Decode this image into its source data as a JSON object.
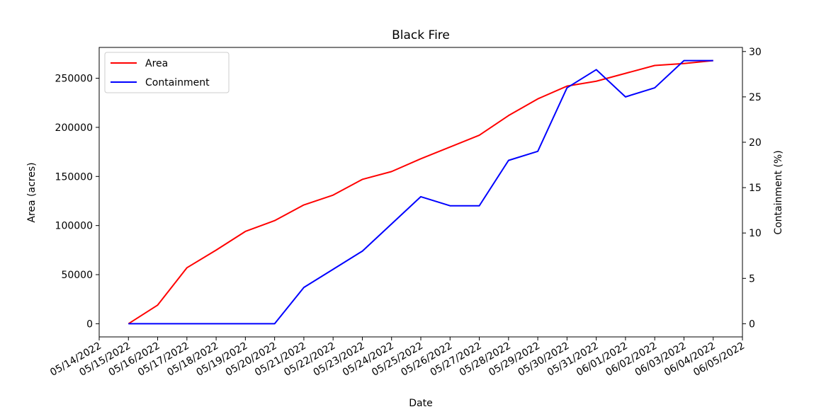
{
  "chart_data": {
    "type": "line",
    "title": "Black Fire",
    "xlabel": "Date",
    "ylabel": "Area (acres)",
    "y2label": "Containment (%)",
    "x": [
      "05/15/2022",
      "05/16/2022",
      "05/17/2022",
      "05/18/2022",
      "05/19/2022",
      "05/20/2022",
      "05/21/2022",
      "05/22/2022",
      "05/23/2022",
      "05/24/2022",
      "05/25/2022",
      "05/26/2022",
      "05/27/2022",
      "05/28/2022",
      "05/29/2022",
      "05/30/2022",
      "05/31/2022",
      "06/01/2022",
      "06/02/2022",
      "06/03/2022",
      "06/04/2022"
    ],
    "x_ticks": [
      "05/14/2022",
      "05/15/2022",
      "05/16/2022",
      "05/17/2022",
      "05/18/2022",
      "05/19/2022",
      "05/20/2022",
      "05/21/2022",
      "05/22/2022",
      "05/23/2022",
      "05/24/2022",
      "05/25/2022",
      "05/26/2022",
      "05/27/2022",
      "05/28/2022",
      "05/29/2022",
      "05/30/2022",
      "05/31/2022",
      "06/01/2022",
      "06/02/2022",
      "06/03/2022",
      "06/04/2022",
      "06/05/2022"
    ],
    "y_ticks": [
      0,
      50000,
      100000,
      150000,
      200000,
      250000
    ],
    "y_tick_labels": [
      "0",
      "50000",
      "100000",
      "150000",
      "200000",
      "250000"
    ],
    "ylim": [
      -13400,
      281400
    ],
    "y2_ticks": [
      0,
      5,
      10,
      15,
      20,
      25,
      30
    ],
    "y2_tick_labels": [
      "0",
      "5",
      "10",
      "15",
      "20",
      "25",
      "30"
    ],
    "y2lim": [
      -1.45,
      30.45
    ],
    "series": [
      {
        "name": "Area",
        "axis": "left",
        "color": "#ff0000",
        "values": [
          0,
          19000,
          57000,
          75000,
          94000,
          105000,
          121000,
          131000,
          147000,
          155000,
          168000,
          180000,
          192000,
          212000,
          229000,
          242000,
          247000,
          255000,
          263000,
          265000,
          268000
        ]
      },
      {
        "name": "Containment",
        "axis": "right",
        "color": "#0000ff",
        "values": [
          0,
          0,
          0,
          0,
          0,
          0,
          4,
          6,
          8,
          11,
          14,
          13,
          13,
          18,
          19,
          26,
          28,
          25,
          26,
          29,
          29
        ]
      }
    ],
    "legend_position": "top-left",
    "grid": false
  }
}
